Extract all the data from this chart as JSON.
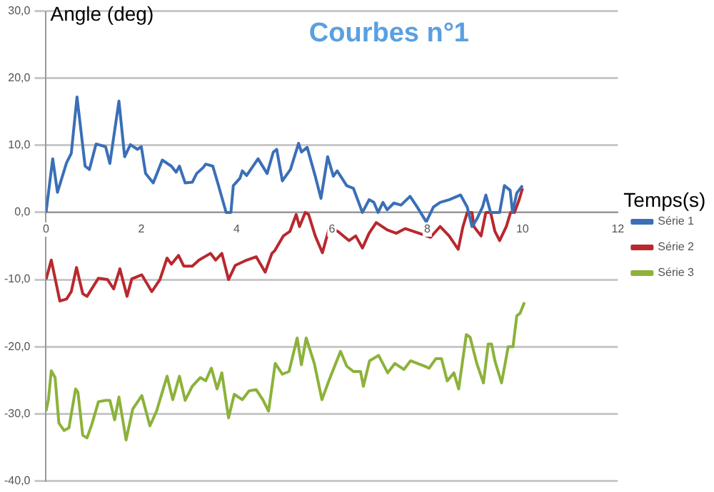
{
  "chart_data": {
    "type": "line",
    "title": "Courbes n°1",
    "xlabel": "Temps(s)",
    "ylabel": "Angle (deg)",
    "xlim": [
      0,
      12
    ],
    "xticks": [
      0,
      2,
      4,
      6,
      8,
      10,
      12
    ],
    "ylim": [
      -40,
      30
    ],
    "yticks": [
      {
        "value": -40,
        "label": "-40,0"
      },
      {
        "value": -30,
        "label": "-30,0"
      },
      {
        "value": -20,
        "label": "-20,0"
      },
      {
        "value": -10,
        "label": "-10,0"
      },
      {
        "value": 0,
        "label": "0,0"
      },
      {
        "value": 10,
        "label": "10,0"
      },
      {
        "value": 20,
        "label": "20,0"
      },
      {
        "value": 30,
        "label": "30,0"
      }
    ],
    "grid": "y",
    "legend": "right",
    "marker": "none",
    "line_style": "solid",
    "series": [
      {
        "name": "Série 1",
        "color": "#3a6fb7",
        "x": [
          0,
          0.14,
          0.24,
          0.43,
          0.53,
          0.65,
          0.82,
          0.91,
          1.05,
          1.25,
          1.34,
          1.53,
          1.65,
          1.77,
          1.92,
          2.0,
          2.09,
          2.25,
          2.44,
          2.63,
          2.73,
          2.8,
          2.92,
          3.07,
          3.16,
          3.3,
          3.35,
          3.5,
          3.62,
          3.78,
          3.88,
          3.93,
          4.07,
          4.12,
          4.21,
          4.45,
          4.64,
          4.77,
          4.84,
          4.96,
          5.13,
          5.3,
          5.36,
          5.48,
          5.65,
          5.77,
          5.91,
          6.03,
          6.11,
          6.31,
          6.45,
          6.64,
          6.78,
          6.88,
          6.97,
          7.07,
          7.16,
          7.3,
          7.45,
          7.64,
          7.79,
          7.98,
          8.13,
          8.27,
          8.46,
          8.7,
          8.84,
          8.94,
          9.04,
          9.16,
          9.23,
          9.33,
          9.52,
          9.62,
          9.74,
          9.79,
          9.88,
          10.0
        ],
        "values": [
          0,
          8,
          3,
          7.4,
          8.8,
          17.2,
          6.9,
          6.4,
          10.2,
          9.8,
          7.3,
          16.6,
          8.3,
          10.1,
          9.4,
          9.8,
          5.8,
          4.4,
          7.8,
          6.9,
          6,
          6.9,
          4.4,
          4.5,
          5.8,
          6.7,
          7.2,
          6.9,
          4,
          0,
          0,
          4,
          5.1,
          6.2,
          5.5,
          8,
          5.8,
          9,
          9.4,
          4.7,
          6.4,
          10.3,
          9,
          9.7,
          5.4,
          2.1,
          8.3,
          5.4,
          6.2,
          4,
          3.6,
          0,
          1.9,
          1.5,
          0,
          1.5,
          0.4,
          1.4,
          1.1,
          2.4,
          0.8,
          -1.4,
          0.8,
          1.5,
          1.9,
          2.6,
          0.8,
          -2.1,
          -1,
          0.8,
          2.6,
          0,
          0,
          4,
          3.3,
          0,
          2.9,
          4
        ]
      },
      {
        "name": "Série 2",
        "color": "#b8282e",
        "x": [
          0,
          0.11,
          0.29,
          0.43,
          0.53,
          0.64,
          0.77,
          0.86,
          1.1,
          1.29,
          1.42,
          1.55,
          1.7,
          1.8,
          2.01,
          2.22,
          2.39,
          2.54,
          2.63,
          2.78,
          2.89,
          3.07,
          3.21,
          3.45,
          3.56,
          3.69,
          3.83,
          3.97,
          4.21,
          4.41,
          4.6,
          4.74,
          4.8,
          4.98,
          5.12,
          5.25,
          5.32,
          5.44,
          5.51,
          5.65,
          5.8,
          5.94,
          6.12,
          6.36,
          6.5,
          6.64,
          6.78,
          6.93,
          7.16,
          7.35,
          7.54,
          7.83,
          8.07,
          8.27,
          8.46,
          8.65,
          8.75,
          8.84,
          8.94,
          8.98,
          9.13,
          9.23,
          9.33,
          9.42,
          9.52,
          9.66,
          9.75,
          9.83,
          9.93,
          10.0
        ],
        "values": [
          -10,
          -7.1,
          -13.2,
          -12.9,
          -11.8,
          -8.2,
          -12.1,
          -12.5,
          -9.8,
          -10,
          -11.4,
          -8.4,
          -12.5,
          -9.9,
          -9.3,
          -11.8,
          -10,
          -6.8,
          -7.7,
          -6.4,
          -8,
          -8,
          -7.1,
          -6.1,
          -7.1,
          -6.1,
          -10,
          -7.9,
          -7.1,
          -6.6,
          -8.9,
          -6.1,
          -5.7,
          -3.5,
          -2.8,
          -0.3,
          -2.1,
          0,
          -0.3,
          -3.5,
          -6,
          -2.4,
          -2.8,
          -4.2,
          -3.5,
          -5.3,
          -3.1,
          -1.5,
          -2.6,
          -3.1,
          -2.4,
          -3.1,
          -3.7,
          -2.1,
          -3.5,
          -5.5,
          -2.1,
          0,
          0,
          -2.1,
          -3.5,
          0,
          0,
          -2.8,
          -4.2,
          -2.1,
          0,
          0,
          1.9,
          3.6
        ]
      },
      {
        "name": "Série 3",
        "color": "#8cb23a",
        "x": [
          0,
          0.05,
          0.11,
          0.19,
          0.27,
          0.38,
          0.48,
          0.62,
          0.67,
          0.77,
          0.86,
          0.96,
          1.1,
          1.25,
          1.34,
          1.44,
          1.53,
          1.68,
          1.82,
          2.01,
          2.18,
          2.32,
          2.54,
          2.66,
          2.8,
          2.92,
          3.07,
          3.24,
          3.35,
          3.47,
          3.59,
          3.69,
          3.83,
          3.95,
          4.12,
          4.26,
          4.41,
          4.55,
          4.67,
          4.81,
          4.96,
          5.1,
          5.27,
          5.36,
          5.46,
          5.63,
          5.79,
          5.94,
          6.18,
          6.31,
          6.45,
          6.6,
          6.66,
          6.79,
          6.98,
          7.17,
          7.32,
          7.51,
          7.65,
          7.94,
          8.04,
          8.18,
          8.3,
          8.42,
          8.56,
          8.66,
          8.82,
          8.9,
          9.04,
          9.18,
          9.28,
          9.35,
          9.42,
          9.56,
          9.7,
          9.8,
          9.88,
          9.95,
          10.04
        ],
        "values": [
          -29.6,
          -27.9,
          -23.6,
          -24.6,
          -31.4,
          -32.5,
          -32.1,
          -26.3,
          -26.8,
          -33.2,
          -33.6,
          -31.6,
          -28.2,
          -28,
          -28,
          -30.9,
          -27.5,
          -33.9,
          -29.3,
          -27.3,
          -31.8,
          -29.6,
          -24.4,
          -27.9,
          -24.4,
          -28,
          -25.9,
          -24.6,
          -25.1,
          -23.2,
          -26.3,
          -23.9,
          -30.6,
          -27.1,
          -27.9,
          -26.6,
          -26.4,
          -27.9,
          -29.6,
          -22.5,
          -24.1,
          -23.7,
          -18.7,
          -22.7,
          -18.7,
          -22.5,
          -27.9,
          -25,
          -20.7,
          -22.9,
          -23.7,
          -23.7,
          -25.9,
          -22.1,
          -21.3,
          -23.9,
          -22.5,
          -23.4,
          -22.1,
          -22.9,
          -23.2,
          -21.8,
          -21.8,
          -25.1,
          -23.9,
          -26.3,
          -18.2,
          -18.6,
          -22.5,
          -25.4,
          -19.6,
          -19.6,
          -22.1,
          -25.4,
          -20,
          -20,
          -15.4,
          -15,
          -13.4
        ]
      }
    ]
  }
}
